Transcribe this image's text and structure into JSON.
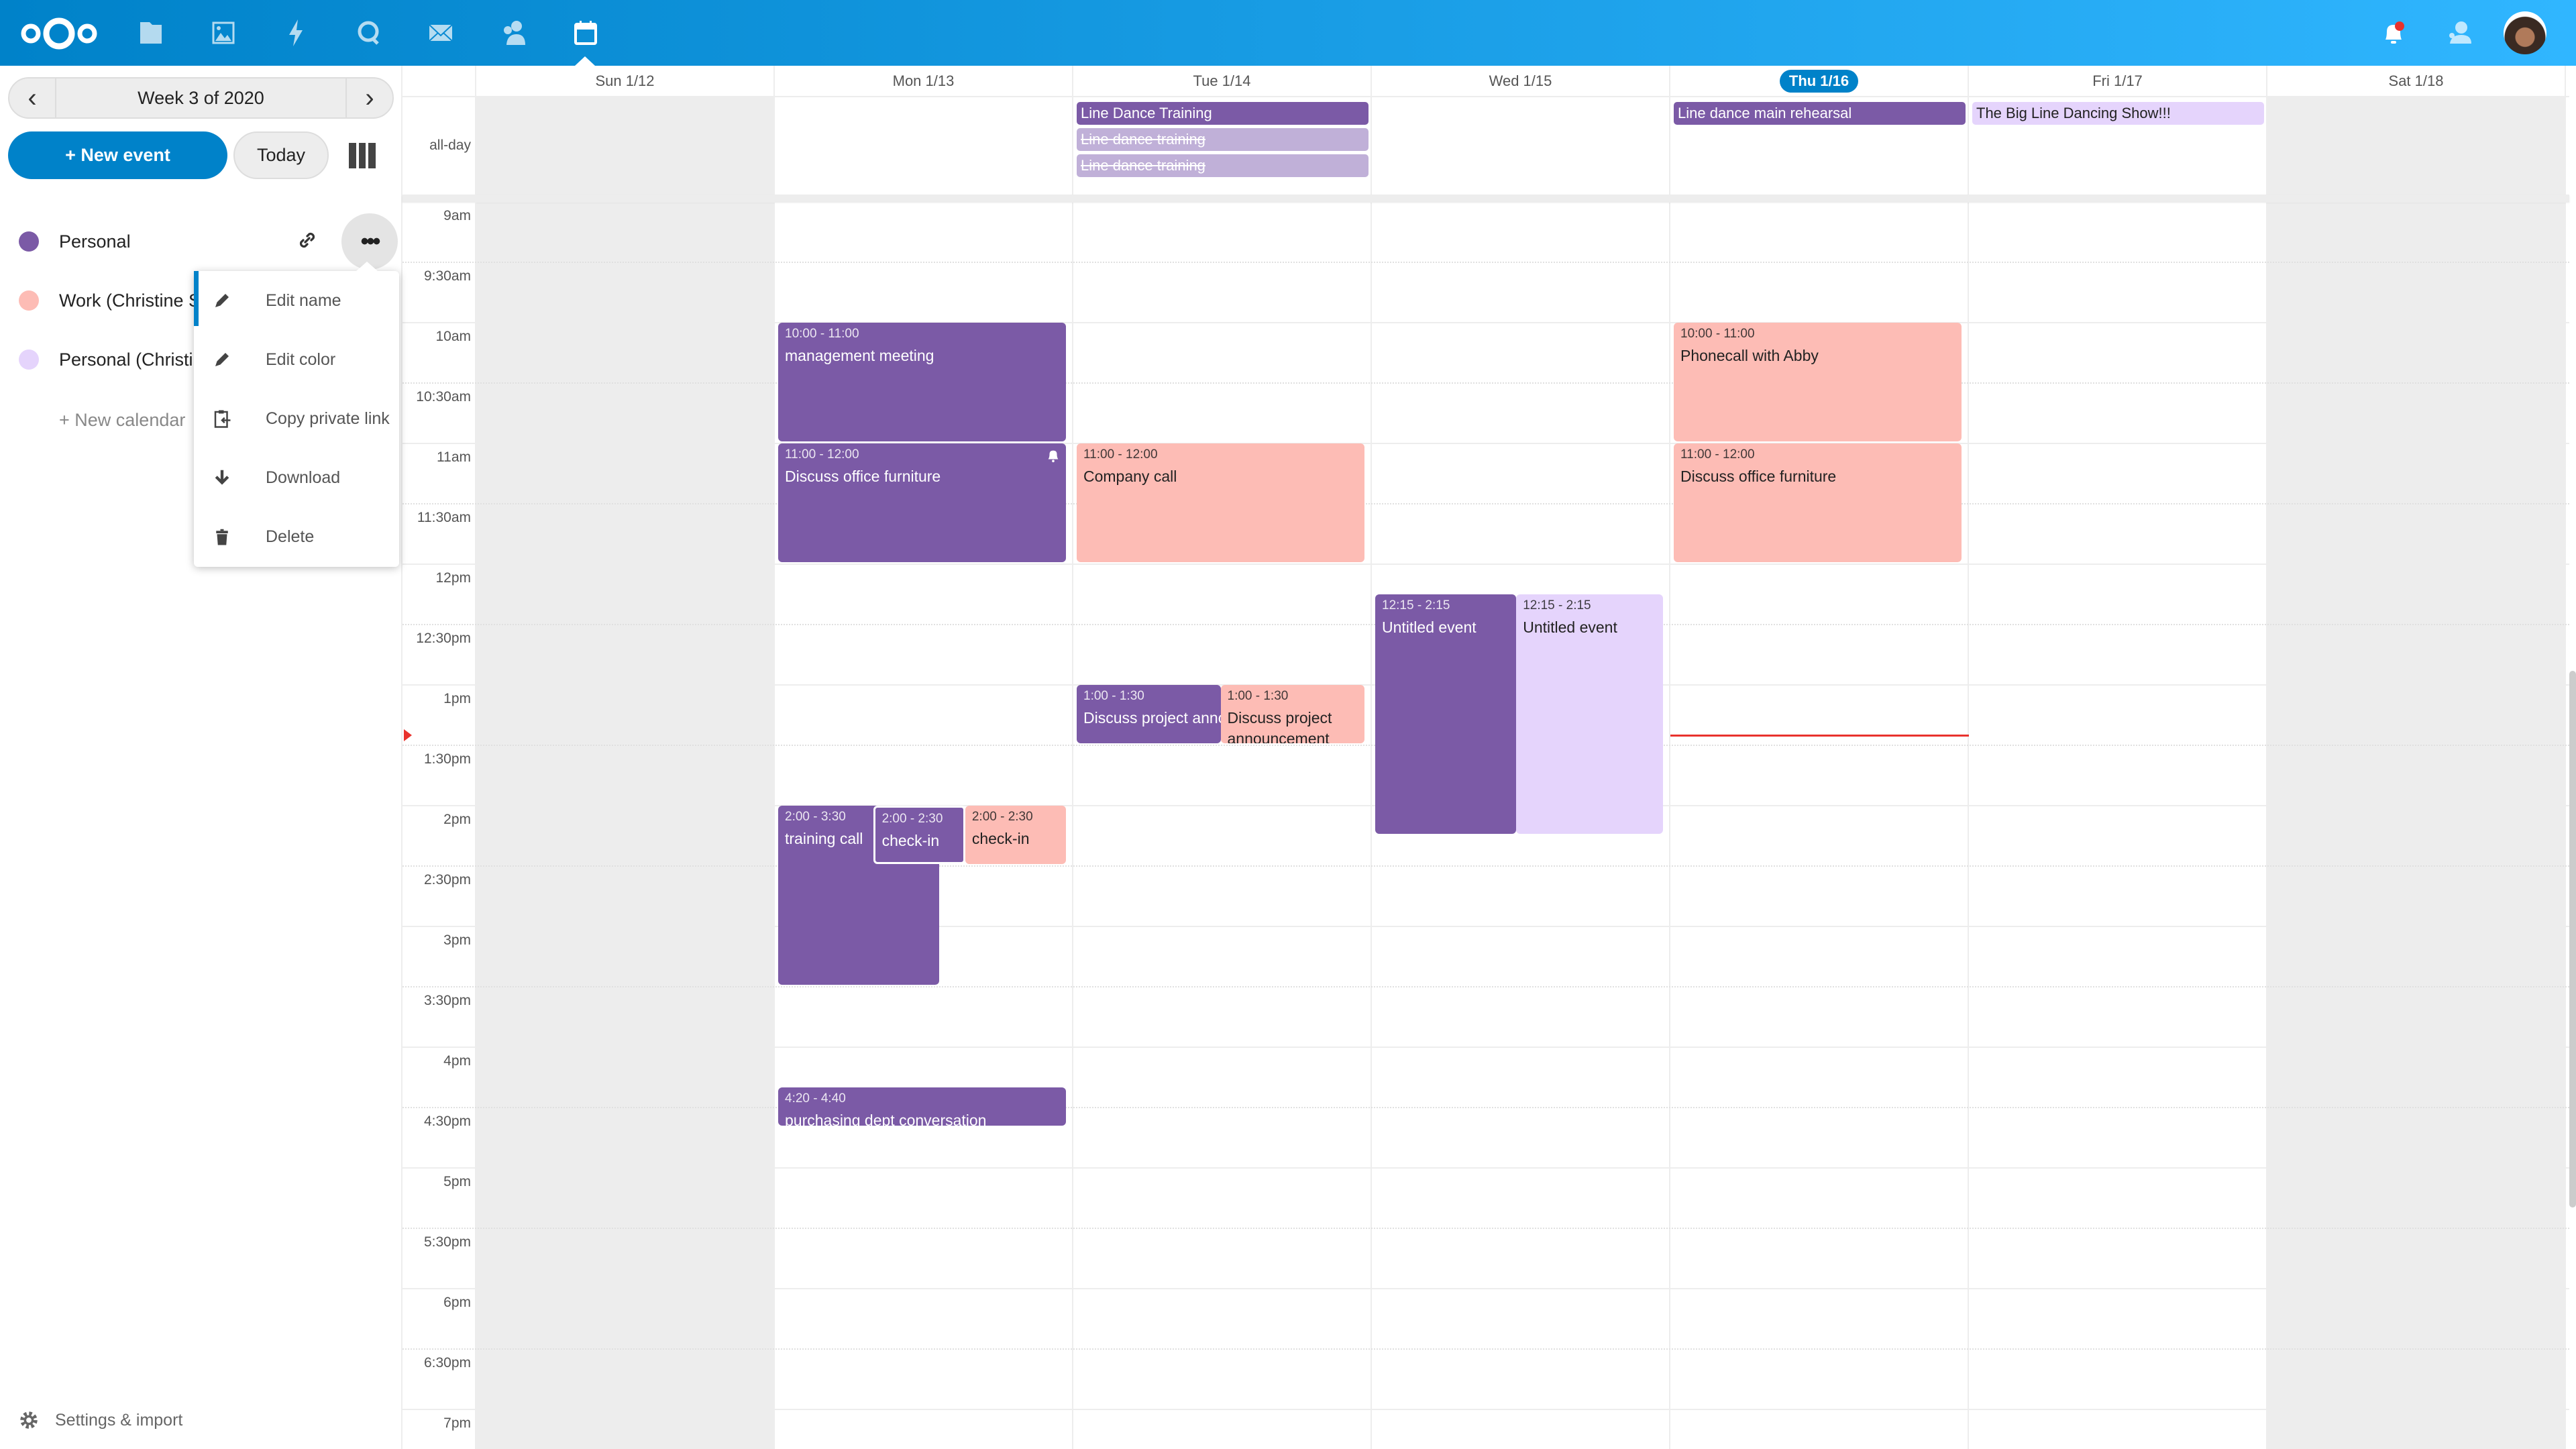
{
  "header": {
    "apps": [
      {
        "icon": "files-icon",
        "label": "Files"
      },
      {
        "icon": "photos-icon",
        "label": "Photos"
      },
      {
        "icon": "activity-icon",
        "label": "Activity"
      },
      {
        "icon": "talk-icon",
        "label": "Talk"
      },
      {
        "icon": "mail-icon",
        "label": "Mail"
      },
      {
        "icon": "contacts-icon",
        "label": "Contacts"
      },
      {
        "icon": "calendar-icon",
        "label": "Calendar",
        "active": true
      }
    ],
    "right": [
      "notifications-bell-icon",
      "contacts-menu-icon",
      "user-avatar"
    ],
    "colors": {
      "start": "#0082c9",
      "end": "#30b6ff"
    }
  },
  "sidebar": {
    "week_label": "Week 3 of 2020",
    "new_event": "+ New event",
    "today": "Today",
    "calendars": [
      {
        "name": "Personal",
        "color": "#7b5aa6"
      },
      {
        "name": "Work (Christine S",
        "color": "#fdbcb5"
      },
      {
        "name": "Personal (Christi",
        "color": "#e5d4fc"
      }
    ],
    "new_calendar": "+ New calendar",
    "settings": "Settings & import",
    "menu": [
      {
        "icon": "pencil-icon",
        "label": "Edit name"
      },
      {
        "icon": "pencil-icon",
        "label": "Edit color"
      },
      {
        "icon": "clipboard-icon",
        "label": "Copy private link"
      },
      {
        "icon": "download-icon",
        "label": "Download"
      },
      {
        "icon": "trash-icon",
        "label": "Delete"
      }
    ]
  },
  "calendar": {
    "days": [
      "Sun 1/12",
      "Mon 1/13",
      "Tue 1/14",
      "Wed 1/15",
      "Thu 1/16",
      "Fri 1/17",
      "Sat 1/18"
    ],
    "today_index": 4,
    "allday_label": "all-day",
    "times": [
      "9am",
      "9:30am",
      "10am",
      "10:30am",
      "11am",
      "11:30am",
      "12pm",
      "12:30pm",
      "1pm",
      "1:30pm",
      "2pm",
      "2:30pm",
      "3pm",
      "3:30pm",
      "4pm",
      "4:30pm",
      "5pm",
      "5:30pm",
      "6pm",
      "6:30pm",
      "7pm"
    ],
    "allday_events": [
      {
        "day": 2,
        "title": "Line Dance Training",
        "calendar": 0
      },
      {
        "day": 2,
        "title": "Line dance training",
        "calendar": 0,
        "cancelled": true
      },
      {
        "day": 2,
        "title": "Line dance training",
        "calendar": 0,
        "cancelled": true
      },
      {
        "day": 4,
        "title": "Line dance main rehearsal",
        "calendar": 0
      },
      {
        "day": 5,
        "title": "The Big Line Dancing Show!!!",
        "calendar": 2
      }
    ],
    "events": [
      {
        "day": 1,
        "start": "10:00",
        "end": "11:00",
        "time": "10:00 - 11:00",
        "title": "management meeting",
        "calendar": 0
      },
      {
        "day": 1,
        "start": "11:00",
        "end": "12:00",
        "time": "11:00 - 12:00",
        "title": "Discuss office furniture",
        "calendar": 0,
        "alarm": true
      },
      {
        "day": 1,
        "start": "14:00",
        "end": "15:30",
        "time": "2:00 - 3:30",
        "title": "training call",
        "calendar": 0
      },
      {
        "day": 1,
        "start": "14:00",
        "end": "14:30",
        "time": "2:00 - 2:30",
        "title": "check-in",
        "calendar": 0
      },
      {
        "day": 1,
        "start": "14:00",
        "end": "14:30",
        "time": "2:00 - 2:30",
        "title": "check-in",
        "calendar": 1
      },
      {
        "day": 1,
        "start": "16:20",
        "end": "16:40",
        "time": "4:20 - 4:40",
        "title": "purchasing dept conversation",
        "calendar": 0
      },
      {
        "day": 2,
        "start": "11:00",
        "end": "12:00",
        "time": "11:00 - 12:00",
        "title": "Company call",
        "calendar": 1
      },
      {
        "day": 2,
        "start": "13:00",
        "end": "13:30",
        "time": "1:00 - 1:30",
        "title": "Discuss project announcement",
        "calendar": 0
      },
      {
        "day": 2,
        "start": "13:00",
        "end": "13:30",
        "time": "1:00 - 1:30",
        "title": "Discuss project announcement",
        "calendar": 1
      },
      {
        "day": 3,
        "start": "12:15",
        "end": "14:15",
        "time": "12:15 - 2:15",
        "title": "Untitled event",
        "calendar": 0
      },
      {
        "day": 3,
        "start": "12:15",
        "end": "14:15",
        "time": "12:15 - 2:15",
        "title": "Untitled event",
        "calendar": 2
      },
      {
        "day": 4,
        "start": "10:00",
        "end": "11:00",
        "time": "10:00 - 11:00",
        "title": "Phonecall with Abby",
        "calendar": 1
      },
      {
        "day": 4,
        "start": "11:00",
        "end": "12:00",
        "time": "11:00 - 12:00",
        "title": "Discuss office furniture",
        "calendar": 1
      }
    ],
    "now": "13:25",
    "now_color": "#e9322d"
  }
}
